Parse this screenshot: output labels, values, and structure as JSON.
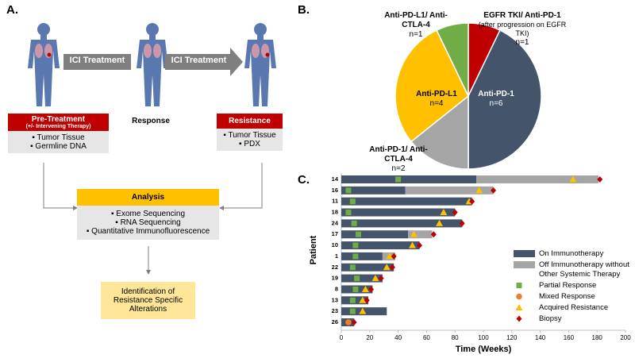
{
  "diagram": {
    "label": "A.",
    "treatment_arrows": [
      "ICI Treatment",
      "ICI Treatment"
    ],
    "pre_treatment": {
      "title": "Pre-Treatment",
      "subtitle": "(+/- Intervening Therapy)",
      "items": [
        "Tumor Tissue",
        "Germline DNA"
      ]
    },
    "response": "Response",
    "resistance": {
      "title": "Resistance",
      "items": [
        "Tumor Tissue",
        "PDX"
      ]
    },
    "analysis": {
      "title": "Analysis",
      "items": [
        "Exome Sequencing",
        "RNA Sequencing",
        "Quantitative Immunofluorescence"
      ]
    },
    "outcome": "Identification of Resistance Specific Alterations"
  },
  "chart_data": [
    {
      "type": "pie",
      "panel_label": "B.",
      "categories": [
        "EGFR TKI/ Anti-PD-1",
        "Anti-PD-1",
        "Anti-PD-1/ Anti-CTLA-4",
        "Anti-PD-L1",
        "Anti-PD-L1/ Anti-CTLA-4"
      ],
      "values": [
        1,
        6,
        2,
        4,
        1
      ],
      "value_labels": [
        "n=1",
        "n=6",
        "n=2",
        "n=4",
        "n=1"
      ],
      "colors": [
        "#c00000",
        "#44546a",
        "#a5a5a5",
        "#ffc000",
        "#70ad47"
      ],
      "annotations": [
        "(after progression on EGFR TKI)"
      ]
    },
    {
      "type": "swimmer",
      "panel_label": "C.",
      "x_label": "Time (Weeks)",
      "y_label": "Patient",
      "categories": [
        "14",
        "16",
        "11",
        "18",
        "24",
        "17",
        "10",
        "1",
        "22",
        "19",
        "8",
        "13",
        "23",
        "26"
      ],
      "xlim": [
        0,
        200
      ],
      "xticks": [
        0,
        20,
        40,
        60,
        80,
        100,
        120,
        140,
        160,
        180,
        200
      ],
      "series": [
        {
          "name": "On Immunotherapy",
          "color": "#44546a",
          "marker": "bar",
          "values": [
            95,
            45,
            92,
            80,
            85,
            47,
            55,
            29,
            37,
            29,
            22,
            19,
            32,
            9
          ]
        },
        {
          "name": "Off Immunotherapy without Other Systemic Therapy",
          "color": "#a5a5a5",
          "marker": "bar",
          "values": [
            86,
            62,
            null,
            null,
            null,
            17,
            null,
            9,
            null,
            null,
            null,
            null,
            null,
            null
          ]
        },
        {
          "name": "Partial Response",
          "color": "#70ad47",
          "marker": "square",
          "values": [
            40,
            5,
            8,
            5,
            9,
            12,
            10,
            10,
            8,
            11,
            10,
            8,
            8,
            null
          ]
        },
        {
          "name": "Mixed Response",
          "color": "#ed7d31",
          "marker": "circle",
          "values": [
            null,
            null,
            null,
            null,
            null,
            null,
            null,
            null,
            null,
            null,
            null,
            null,
            null,
            5
          ]
        },
        {
          "name": "Acquired Resistance",
          "color": "#ffc000",
          "marker": "triangle",
          "values": [
            163,
            97,
            90,
            72,
            69,
            51,
            50,
            34,
            32,
            24,
            17,
            15,
            15,
            null
          ]
        },
        {
          "name": "Biopsy",
          "color": "#c00000",
          "marker": "diamond",
          "values": [
            182,
            107,
            92,
            80,
            85,
            65,
            55,
            37,
            36,
            28,
            21,
            18,
            null,
            9
          ]
        }
      ]
    }
  ]
}
